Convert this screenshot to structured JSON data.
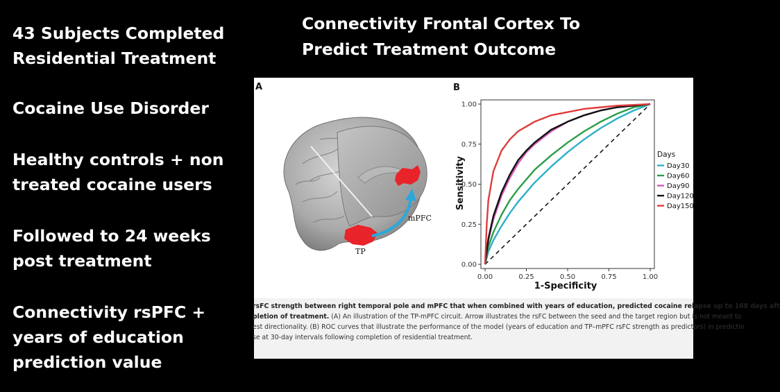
{
  "bullets": [
    {
      "lines": [
        "43 Subjects Completed",
        "Residential Treatment"
      ]
    },
    {
      "lines": [
        "Cocaine Use Disorder"
      ]
    },
    {
      "lines": [
        "Healthy controls + non",
        "treated cocaine users"
      ]
    },
    {
      "lines": [
        "Followed to 24 weeks",
        "post treatment"
      ]
    },
    {
      "lines": [
        "Connectivity rsPFC +",
        "years of education",
        "prediction value"
      ]
    }
  ],
  "title": {
    "line1": "Connectivity Frontal Cortex To",
    "line2": "Predict Treatment Outcome"
  },
  "figure": {
    "panel_a": {
      "letter": "A",
      "label_mpfc": "mPFC",
      "label_tp": "TP",
      "colors": {
        "region": "#e8232a",
        "arrow": "#2aa8dc"
      }
    },
    "panel_b": {
      "letter": "B"
    },
    "caption": {
      "line1_bold": "rsFC strength between right temporal pole and mPFC that when combined with years of education, predicted cocaine relapse up to 168 days aft",
      "line2_bold": "pletion of treatment.",
      "line2_rest": " (A) An illustration of the TP-mPFC circuit. Arrow illustrates the rsFC between the seed and the target region but is not meant to",
      "line3": "est directionality. (B) ROC curves that illustrate the performance of the model (years of education and TP–mPFC rsFC strength as predictors) in predictin",
      "line4": "se at 30-day intervals following completion of residential treatment."
    }
  },
  "chart_data": {
    "type": "line",
    "title": "",
    "xlabel": "1-Specificity",
    "ylabel": "Sensitivity",
    "xlim": [
      0,
      1
    ],
    "ylim": [
      0,
      1
    ],
    "xticks": [
      "0.00",
      "0.25",
      "0.50",
      "0.75",
      "1.00"
    ],
    "yticks": [
      "0.00",
      "0.25",
      "0.50",
      "0.75",
      "1.00"
    ],
    "grid": false,
    "legend": {
      "title": "Days",
      "placement": "right"
    },
    "reference_line": {
      "style": "dashed",
      "from": [
        0,
        0
      ],
      "to": [
        1,
        1
      ]
    },
    "series": [
      {
        "name": "Day30",
        "color": "#2bb0c8",
        "x": [
          0,
          0.02,
          0.05,
          0.1,
          0.15,
          0.2,
          0.25,
          0.3,
          0.4,
          0.5,
          0.6,
          0.7,
          0.8,
          0.9,
          1.0
        ],
        "y": [
          0,
          0.08,
          0.15,
          0.24,
          0.32,
          0.39,
          0.45,
          0.51,
          0.61,
          0.7,
          0.78,
          0.85,
          0.91,
          0.96,
          1.0
        ]
      },
      {
        "name": "Day60",
        "color": "#2a9d48",
        "x": [
          0,
          0.02,
          0.05,
          0.1,
          0.15,
          0.2,
          0.25,
          0.3,
          0.4,
          0.5,
          0.6,
          0.7,
          0.8,
          0.9,
          1.0
        ],
        "y": [
          0,
          0.11,
          0.2,
          0.31,
          0.4,
          0.47,
          0.53,
          0.59,
          0.68,
          0.76,
          0.83,
          0.89,
          0.94,
          0.98,
          1.0
        ]
      },
      {
        "name": "Day90",
        "color": "#d457b8",
        "x": [
          0,
          0.02,
          0.05,
          0.1,
          0.15,
          0.2,
          0.25,
          0.3,
          0.4,
          0.5,
          0.6,
          0.7,
          0.8,
          0.9,
          1.0
        ],
        "y": [
          0,
          0.15,
          0.28,
          0.43,
          0.54,
          0.63,
          0.7,
          0.75,
          0.83,
          0.89,
          0.93,
          0.96,
          0.98,
          0.99,
          1.0
        ]
      },
      {
        "name": "Day120",
        "color": "#111111",
        "x": [
          0,
          0.02,
          0.05,
          0.1,
          0.15,
          0.2,
          0.25,
          0.3,
          0.4,
          0.5,
          0.6,
          0.7,
          0.8,
          0.9,
          1.0
        ],
        "y": [
          0,
          0.16,
          0.3,
          0.45,
          0.56,
          0.65,
          0.71,
          0.76,
          0.84,
          0.89,
          0.93,
          0.96,
          0.98,
          0.99,
          1.0
        ]
      },
      {
        "name": "Day150",
        "color": "#e03c3c",
        "x": [
          0,
          0.01,
          0.02,
          0.05,
          0.1,
          0.15,
          0.2,
          0.25,
          0.3,
          0.4,
          0.5,
          0.6,
          0.7,
          0.8,
          0.9,
          1.0
        ],
        "y": [
          0,
          0.25,
          0.4,
          0.58,
          0.71,
          0.78,
          0.83,
          0.86,
          0.89,
          0.93,
          0.95,
          0.97,
          0.98,
          0.99,
          0.995,
          1.0
        ]
      }
    ]
  }
}
